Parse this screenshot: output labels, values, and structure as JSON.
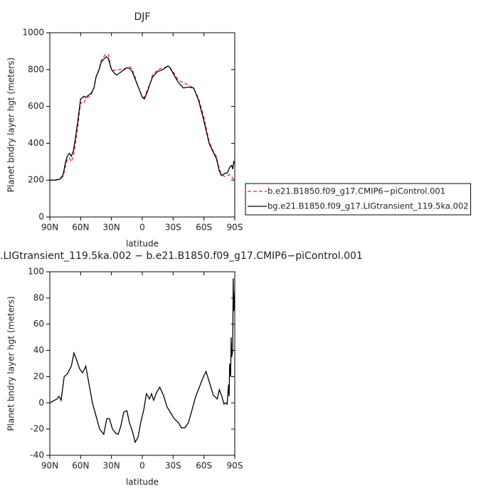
{
  "chart_data": [
    {
      "type": "line",
      "title": "DJF",
      "x_label": "latitude",
      "y_label": "Planet bndry layer hgt (meters)",
      "x": [
        90,
        85,
        80,
        77,
        75,
        73,
        71,
        69,
        67,
        65,
        63,
        60,
        57,
        55,
        50,
        47,
        45,
        42,
        40,
        37,
        35,
        33,
        30,
        27,
        25,
        20,
        15,
        12,
        10,
        7,
        5,
        2,
        0,
        -2,
        -5,
        -8,
        -10,
        -15,
        -20,
        -25,
        -27,
        -30,
        -35,
        -40,
        -45,
        -50,
        -55,
        -60,
        -65,
        -70,
        -72,
        -75,
        -77,
        -80,
        -83,
        -85,
        -87,
        -88,
        -89,
        -90
      ],
      "series": [
        {
          "name": "b.e21.B1850.f09_g17.CMIP6−piControl.001",
          "color": "#e8292b",
          "linestyle": "dashed",
          "values": [
            200,
            200,
            205,
            220,
            270,
            310,
            320,
            300,
            330,
            400,
            480,
            620,
            615,
            640,
            660,
            700,
            760,
            800,
            850,
            875,
            885,
            880,
            800,
            795,
            800,
            800,
            810,
            815,
            800,
            760,
            720,
            680,
            650,
            650,
            690,
            730,
            770,
            800,
            810,
            815,
            810,
            790,
            740,
            730,
            715,
            700,
            640,
            540,
            410,
            345,
            330,
            260,
            230,
            220,
            225,
            230,
            220,
            210,
            205,
            200
          ]
        },
        {
          "name": "bg.e21.B1850.f09_g17.LIGtransient_119.5ka.002",
          "color": "#000000",
          "linestyle": "solid",
          "values": [
            200,
            200,
            205,
            230,
            290,
            330,
            345,
            330,
            360,
            430,
            510,
            640,
            655,
            650,
            670,
            700,
            760,
            800,
            840,
            860,
            870,
            860,
            800,
            780,
            770,
            790,
            810,
            805,
            790,
            750,
            720,
            680,
            650,
            640,
            680,
            730,
            760,
            790,
            800,
            820,
            810,
            780,
            730,
            700,
            705,
            700,
            630,
            520,
            400,
            340,
            320,
            250,
            225,
            235,
            240,
            270,
            280,
            260,
            300,
            290
          ]
        }
      ],
      "xlim": [
        90,
        -90
      ],
      "xticks": [
        {
          "value": 90,
          "label": "90N"
        },
        {
          "value": 60,
          "label": "60N"
        },
        {
          "value": 30,
          "label": "30N"
        },
        0,
        {
          "value": -30,
          "label": "30S"
        },
        {
          "value": -60,
          "label": "60S"
        },
        {
          "value": -90,
          "label": "90S"
        }
      ],
      "ylim": [
        0,
        1000
      ],
      "yticks": [
        0,
        200,
        400,
        600,
        800,
        1000
      ],
      "legend": "right"
    },
    {
      "type": "line",
      "title": ".LIGtransient_119.5ka.002 − b.e21.B1850.f09_g17.CMIP6−piControl.001",
      "x_label": "latitude",
      "y_label": "Planet bndry layer hgt (meters)",
      "x": [
        90,
        83,
        81,
        79,
        76,
        73,
        69,
        66.5,
        64,
        61,
        58,
        55,
        52,
        48.5,
        45,
        41.5,
        37.5,
        34.5,
        32,
        29,
        26,
        23.5,
        21,
        18,
        15,
        12.5,
        9.5,
        7,
        4,
        1.5,
        -1.5,
        -4,
        -7,
        -9,
        -11,
        -14,
        -17,
        -21,
        -24,
        -28,
        -31,
        -35,
        -38,
        -41.5,
        -45,
        -48.5,
        -52,
        -55.5,
        -59,
        -62,
        -66,
        -69,
        -73,
        -75,
        -77.5,
        -79.5,
        -81,
        -82.5,
        -84,
        -84.5,
        -85,
        -86,
        -86.5,
        -87,
        -88,
        -88.5,
        -89,
        -90
      ],
      "values": [
        0,
        3,
        5,
        2,
        20,
        22,
        28,
        38,
        33,
        26,
        23,
        28,
        15,
        0,
        -10,
        -20,
        -24,
        -12,
        -12,
        -20,
        -23,
        -24,
        -18,
        -7,
        -6,
        -15,
        -22,
        -30,
        -26,
        -15,
        -5,
        7,
        3,
        7,
        2,
        8,
        12,
        5,
        -3,
        -8,
        -12,
        -15,
        -19,
        -19,
        -15,
        -5,
        5,
        12,
        19,
        24,
        14,
        6,
        3,
        10,
        5,
        -1,
        0,
        -1,
        14,
        5,
        30,
        20,
        50,
        35,
        40,
        95,
        70,
        85
      ],
      "color": "#000000",
      "xlim": [
        90,
        -90
      ],
      "xticks": [
        {
          "value": 90,
          "label": "90N"
        },
        {
          "value": 60,
          "label": "60N"
        },
        {
          "value": 30,
          "label": "30N"
        },
        0,
        {
          "value": -30,
          "label": "30S"
        },
        {
          "value": -60,
          "label": "60S"
        },
        {
          "value": -90,
          "label": "90S"
        }
      ],
      "ylim": [
        -40,
        100
      ],
      "yticks": [
        -40,
        -20,
        0,
        20,
        40,
        60,
        80,
        100
      ]
    }
  ]
}
